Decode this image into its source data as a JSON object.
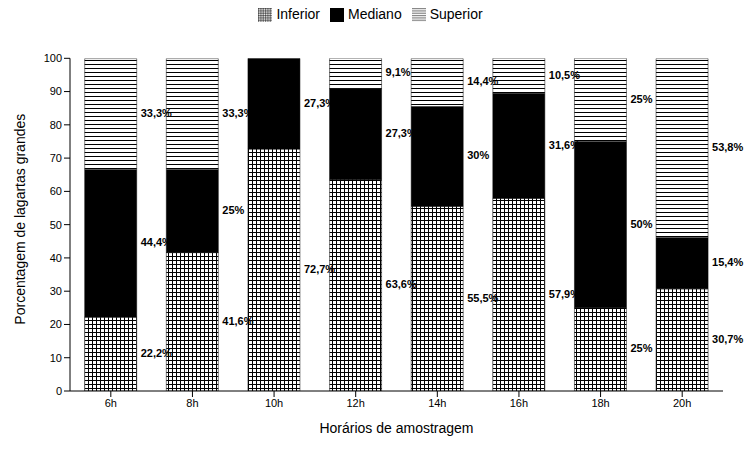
{
  "chart_data": {
    "type": "bar",
    "stacked": true,
    "data_labels": true,
    "grid": false,
    "legend": "top",
    "x_label": "Horários de amostragem",
    "y_label": "Porcentagem de lagartas grandes",
    "categories": [
      "6h",
      "8h",
      "10h",
      "12h",
      "14h",
      "16h",
      "18h",
      "20h"
    ],
    "ylim": [
      0,
      100
    ],
    "yticks": [
      0,
      10,
      20,
      30,
      40,
      50,
      60,
      70,
      80,
      90,
      100
    ],
    "series": [
      {
        "name": "Inferior",
        "color": "#000000",
        "values": [
          22.2,
          41.6,
          72.7,
          63.6,
          55.5,
          57.9,
          25,
          30.7
        ],
        "value_labels": [
          "22,2%",
          "41,6%",
          "72,7%",
          "63,6%",
          "55,5%",
          "57,9%",
          "25%",
          "30,7%"
        ]
      },
      {
        "name": "Mediano",
        "color": "#000000",
        "values": [
          44.4,
          25,
          27.3,
          27.3,
          30,
          31.6,
          50,
          15.4
        ],
        "value_labels": [
          "44,4%",
          "25%",
          "27,3%",
          "27,3%",
          "30%",
          "31,6%",
          "50%",
          "15,4%"
        ]
      },
      {
        "name": "Superior",
        "color": "#000000",
        "values": [
          33.3,
          33.3,
          null,
          9.1,
          14.4,
          10.5,
          25,
          53.8
        ],
        "value_labels": [
          "33,3%",
          "33,3%",
          null,
          "9,1%",
          "14,4%",
          "10,5%",
          "25%",
          "53,8%"
        ]
      }
    ]
  }
}
